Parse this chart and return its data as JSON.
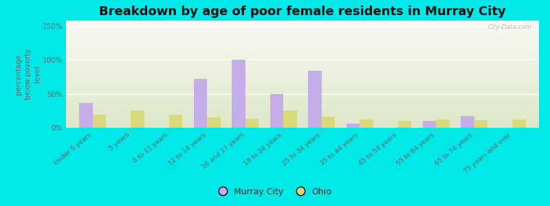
{
  "title": "Breakdown by age of poor female residents in Murray City",
  "ylabel": "percentage\nbelow poverty\nlevel",
  "categories": [
    "Under 5 years",
    "5 years",
    "6 to 11 years",
    "12 to 14 years",
    "16 and 17 years",
    "18 to 24 years",
    "25 to 34 years",
    "35 to 44 years",
    "45 to 54 years",
    "55 to 64 years",
    "65 to 74 years",
    "75 years and over"
  ],
  "murray_city": [
    36,
    0,
    0,
    72,
    100,
    50,
    84,
    6,
    0,
    10,
    17,
    0
  ],
  "ohio": [
    19,
    25,
    19,
    15,
    13,
    25,
    16,
    12,
    10,
    12,
    11,
    12
  ],
  "murray_color": "#c5aee8",
  "ohio_color": "#d9d97a",
  "background_outer": "#00e8e8",
  "yticks": [
    0,
    50,
    100,
    150
  ],
  "ylim": [
    0,
    158
  ],
  "bar_width": 0.35,
  "title_fontsize": 13,
  "legend_labels": [
    "Murray City",
    "Ohio"
  ],
  "watermark": "City-Data.com"
}
